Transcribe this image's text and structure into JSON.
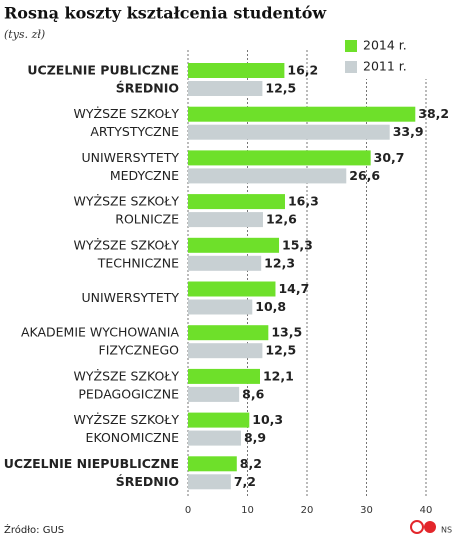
{
  "chart_data": {
    "type": "bar",
    "orientation": "horizontal",
    "title": "Rosną koszty kształcenia studentów",
    "subtitle": "(tys. zł)",
    "source": "Źródło: GUS",
    "credit": "NS",
    "categories": [
      [
        "UCZELNIE PUBLICZNE",
        "ŚREDNIO"
      ],
      [
        "WYŻSZE SZKOŁY",
        "ARTYSTYCZNE"
      ],
      [
        "UNIWERSYTETY",
        "MEDYCZNE"
      ],
      [
        "WYŻSZE SZKOŁY",
        "ROLNICZE"
      ],
      [
        "WYŻSZE SZKOŁY",
        "TECHNICZNE"
      ],
      [
        "UNIWERSYTETY"
      ],
      [
        "AKADEMIE WYCHOWANIA",
        "FIZYCZNEGO"
      ],
      [
        "WYŻSZE SZKOŁY",
        "PEDAGOGICZNE"
      ],
      [
        "WYŻSZE SZKOŁY",
        "EKONOMICZNE"
      ],
      [
        "UCZELNIE NIEPUBLICZNE",
        "ŚREDNIO"
      ]
    ],
    "highlighted_categories": [
      0,
      9
    ],
    "highlight_color": "#e3262b",
    "series": [
      {
        "name": "2014 r.",
        "color": "#6ee02a",
        "values": [
          16.2,
          38.2,
          30.7,
          16.3,
          15.3,
          14.7,
          13.5,
          12.1,
          10.3,
          8.2
        ],
        "value_labels": [
          "16,2",
          "38,2",
          "30,7",
          "16,3",
          "15,3",
          "14,7",
          "13,5",
          "12,1",
          "10,3",
          "8,2"
        ]
      },
      {
        "name": "2011 r.",
        "color": "#c8d0d3",
        "values": [
          12.5,
          33.9,
          26.6,
          12.6,
          12.3,
          10.8,
          12.5,
          8.6,
          8.9,
          7.2
        ],
        "value_labels": [
          "12,5",
          "33,9",
          "26,6",
          "12,6",
          "12,3",
          "10,8",
          "12,5",
          "8,6",
          "8,9",
          "7,2"
        ]
      }
    ],
    "xlim": [
      0,
      40
    ],
    "xticks": [
      0,
      10,
      20,
      30,
      40
    ],
    "grid": true,
    "legend": "top-right"
  }
}
